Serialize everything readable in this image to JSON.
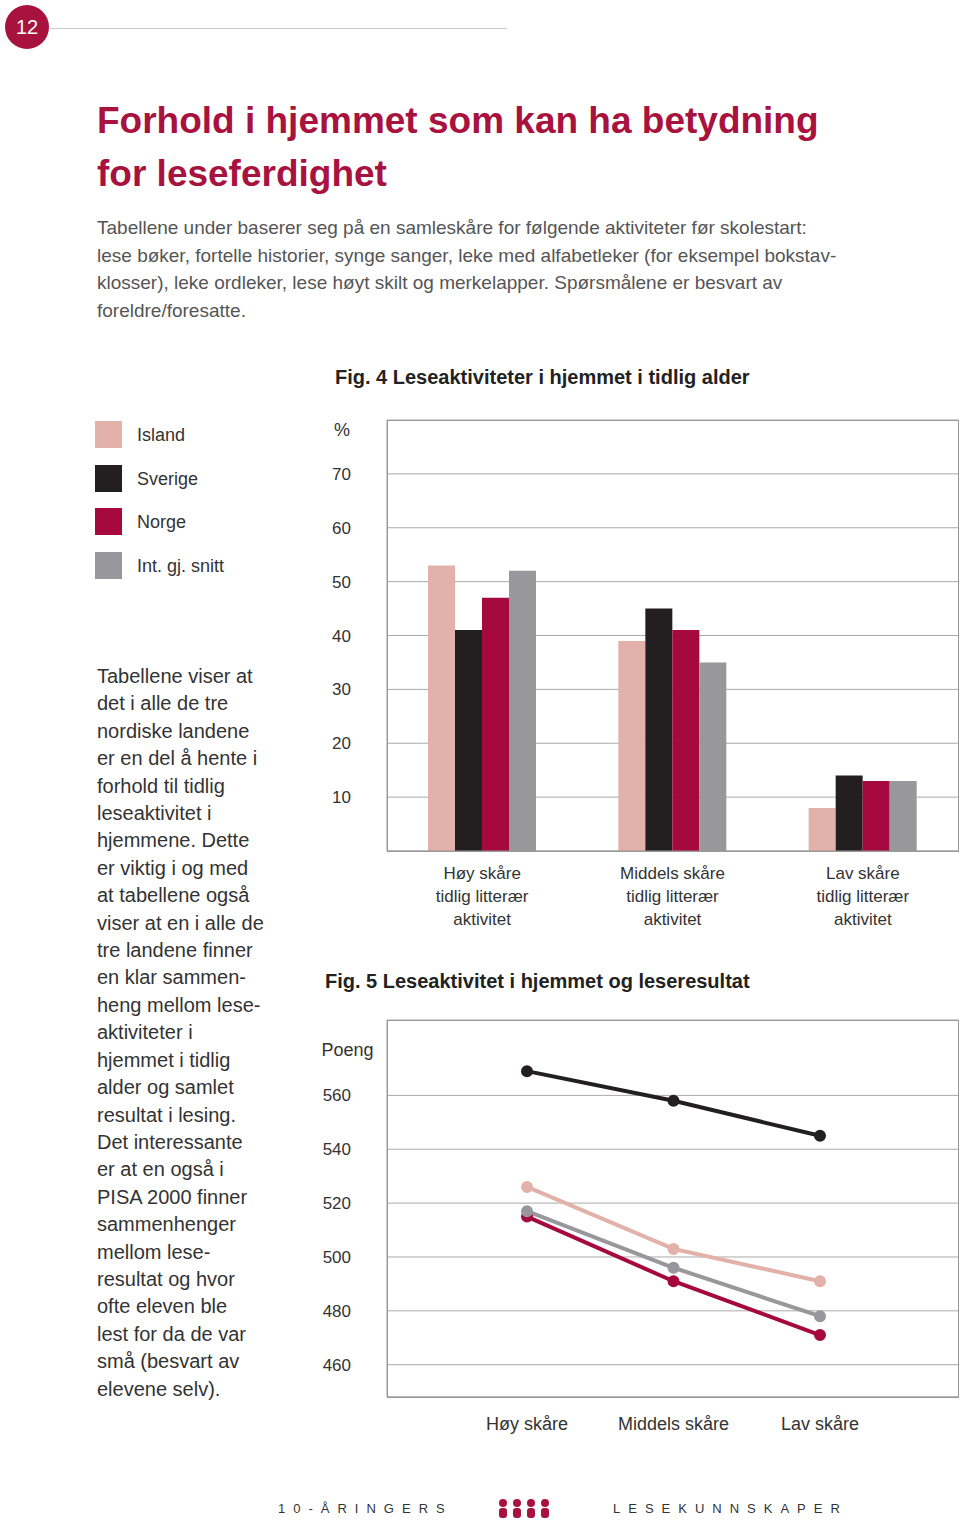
{
  "page_number": "12",
  "title": "Forhold i hjemmet som kan ha betydning\nfor leseferdighet",
  "intro": [
    "Tabellene under baserer seg på en samleskåre for følgende aktiviteter før skolestart:",
    "lese bøker, fortelle historier, synge sanger, leke med alfabetleker (for eksempel bokstav-",
    "klosser), leke ordleker, lese høyt skilt og merkelapper. Spørsmålene er besvart av",
    "foreldre/foresatte."
  ],
  "side_text": [
    "Tabellene viser at",
    "det i alle de tre",
    "nordiske landene",
    "er en del å hente i",
    "forhold til tidlig",
    "leseaktivitet i",
    "hjemmene. Dette",
    "er viktig i og med",
    "at tabellene også",
    "viser at en i alle de",
    "tre landene finner",
    "en klar sammen-",
    "heng mellom lese-",
    "aktiviteter i",
    "hjemmet i tidlig",
    "alder og samlet",
    "resultat i lesing.",
    "Det interessante",
    "er at en også i",
    "PISA 2000 finner",
    "sammenhenger",
    "mellom lese-",
    "resultat og hvor",
    "ofte eleven ble",
    "lest for da de var",
    "små (besvart av",
    "elevene selv)."
  ],
  "footer": {
    "left": "10-ÅRINGERS",
    "right": "LESEKUNNSKAPER"
  },
  "chart_data": [
    {
      "type": "bar",
      "title": "Fig. 4 Leseaktiviteter i hjemmet i tidlig alder",
      "y_label": "%",
      "categories": [
        "Høy skåre\ntidlig litterær\naktivitet",
        "Middels skåre\ntidlig litterær\naktivitet",
        "Lav skåre\ntidlig litterær\naktivitet"
      ],
      "series": [
        {
          "name": "Island",
          "color": "#e2b1a9",
          "values": [
            53,
            39,
            8
          ]
        },
        {
          "name": "Sverige",
          "color": "#231f20",
          "values": [
            41,
            45,
            14
          ]
        },
        {
          "name": "Norge",
          "color": "#a6093d",
          "values": [
            47,
            41,
            13
          ]
        },
        {
          "name": "Int. gj. snitt",
          "color": "#97979c",
          "values": [
            52,
            35,
            13
          ]
        }
      ],
      "ylim": [
        0,
        80
      ],
      "yticks": [
        10,
        20,
        30,
        40,
        50,
        60,
        70
      ],
      "grid": true,
      "legend": "left"
    },
    {
      "type": "line",
      "title": "Fig. 5 Leseaktivitet i hjemmet og leseresultat",
      "y_label": "Poeng",
      "categories": [
        "Høy skåre",
        "Middels skåre",
        "Lav skåre"
      ],
      "series": [
        {
          "name": "Norge",
          "color": "#a6093d",
          "values": [
            515,
            491,
            471
          ]
        },
        {
          "name": "Sverige",
          "color": "#231f20",
          "values": [
            569,
            558,
            545
          ]
        },
        {
          "name": "Island",
          "color": "#e2b1a9",
          "values": [
            526,
            503,
            491
          ]
        },
        {
          "name": "Int. gj. snitt",
          "color": "#97979c",
          "values": [
            517,
            496,
            478
          ]
        }
      ],
      "ylim": [
        448,
        588
      ],
      "yticks": [
        460,
        480,
        500,
        520,
        540,
        560
      ],
      "grid": true
    }
  ]
}
